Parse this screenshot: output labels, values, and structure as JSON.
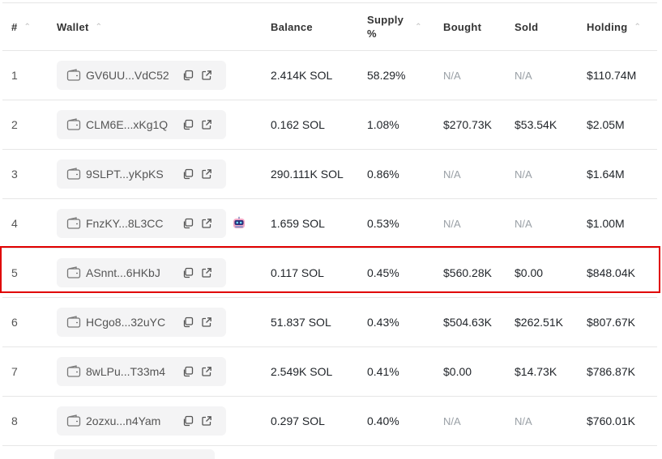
{
  "headers": {
    "rank": "#",
    "wallet": "Wallet",
    "balance": "Balance",
    "supply_line1": "Supply",
    "supply_line2": "%",
    "bought": "Bought",
    "sold": "Sold",
    "holding": "Holding"
  },
  "rows": [
    {
      "rank": "1",
      "wallet": "GV6UU...VdC52",
      "balance": "2.414K SOL",
      "supply": "58.29%",
      "bought": "N/A",
      "sold": "N/A",
      "holding": "$110.74M"
    },
    {
      "rank": "2",
      "wallet": "CLM6E...xKg1Q",
      "balance": "0.162 SOL",
      "supply": "1.08%",
      "bought": "$270.73K",
      "sold": "$53.54K",
      "holding": "$2.05M"
    },
    {
      "rank": "3",
      "wallet": "9SLPT...yKpKS",
      "balance": "290.111K SOL",
      "supply": "0.86%",
      "bought": "N/A",
      "sold": "N/A",
      "holding": "$1.64M"
    },
    {
      "rank": "4",
      "wallet": "FnzKY...8L3CC",
      "balance": "1.659 SOL",
      "supply": "0.53%",
      "bought": "N/A",
      "sold": "N/A",
      "holding": "$1.00M",
      "bot_icon": "robot-icon"
    },
    {
      "rank": "5",
      "wallet": "ASnnt...6HKbJ",
      "balance": "0.117 SOL",
      "supply": "0.45%",
      "bought": "$560.28K",
      "sold": "$0.00",
      "holding": "$848.04K",
      "highlighted": true
    },
    {
      "rank": "6",
      "wallet": "HCgo8...32uYC",
      "balance": "51.837 SOL",
      "supply": "0.43%",
      "bought": "$504.63K",
      "sold": "$262.51K",
      "holding": "$807.67K"
    },
    {
      "rank": "7",
      "wallet": "8wLPu...T33m4",
      "balance": "2.549K SOL",
      "supply": "0.41%",
      "bought": "$0.00",
      "sold": "$14.73K",
      "holding": "$786.87K"
    },
    {
      "rank": "8",
      "wallet": "2ozxu...n4Yam",
      "balance": "0.297 SOL",
      "supply": "0.40%",
      "bought": "N/A",
      "sold": "N/A",
      "holding": "$760.01K"
    }
  ],
  "icons": {
    "wallet": "wallet-icon",
    "copy": "copy-icon",
    "external": "external-link-icon",
    "sort": "sort-arrow-icon"
  },
  "colors": {
    "highlight_border": "#e00000",
    "muted_text": "#9aa0a6",
    "pill_bg": "#f4f4f5"
  }
}
